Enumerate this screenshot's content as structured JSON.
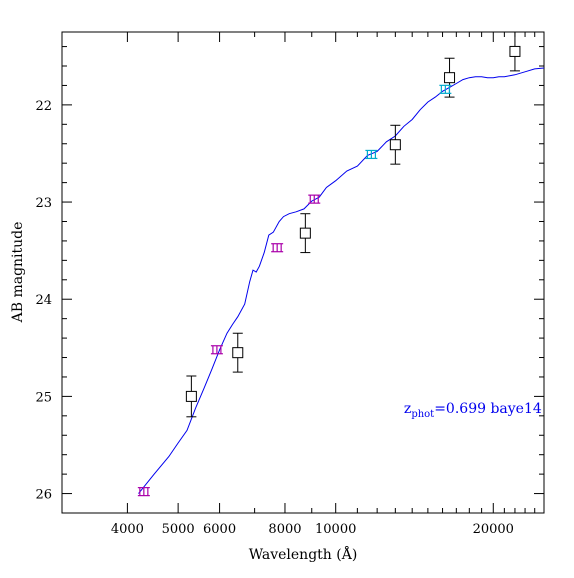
{
  "chart_data": {
    "type": "scatter",
    "title": "",
    "xlabel": "Wavelength (Å)",
    "ylabel": "AB magnitude",
    "x_scale": "log",
    "xlim": [
      3000,
      25000
    ],
    "ylim": [
      26.2,
      21.25
    ],
    "y_inverted": true,
    "x_ticks": [
      4000,
      5000,
      6000,
      8000,
      10000,
      20000
    ],
    "x_tick_labels": [
      "4000",
      "5000",
      "6000",
      "8000",
      "10000",
      "20000"
    ],
    "y_ticks": [
      22,
      23,
      24,
      25,
      26
    ],
    "y_tick_labels": [
      "22",
      "23",
      "24",
      "25",
      "26"
    ],
    "grid": false,
    "annotation": {
      "main": "z",
      "subscript": "phot",
      "rest": "=0.699 baye14",
      "color": "#0000ee",
      "x": 13500,
      "y": 25.12
    },
    "series": [
      {
        "kind": "model",
        "color": "#0000ee",
        "x": [
          4200,
          4500,
          4800,
          5000,
          5200,
          5400,
          5600,
          5800,
          6000,
          6200,
          6350,
          6500,
          6700,
          6850,
          6950,
          7050,
          7150,
          7300,
          7450,
          7600,
          7800,
          7950,
          8150,
          8400,
          8700,
          9000,
          9300,
          9600,
          10000,
          10500,
          11000,
          11500,
          12000,
          12500,
          13000,
          13500,
          14000,
          14500,
          15000,
          15500,
          16000,
          16500,
          17000,
          17500,
          18000,
          18500,
          19000,
          19500,
          20000,
          20500,
          21000,
          21500,
          22000,
          23000,
          24000,
          25000
        ],
        "y": [
          26.0,
          25.8,
          25.62,
          25.48,
          25.35,
          25.12,
          24.92,
          24.72,
          24.52,
          24.35,
          24.26,
          24.18,
          24.05,
          23.82,
          23.7,
          23.72,
          23.66,
          23.52,
          23.34,
          23.31,
          23.2,
          23.15,
          23.12,
          23.1,
          23.07,
          22.99,
          22.95,
          22.85,
          22.78,
          22.68,
          22.63,
          22.52,
          22.48,
          22.38,
          22.32,
          22.22,
          22.15,
          22.05,
          21.97,
          21.92,
          21.86,
          21.82,
          21.78,
          21.74,
          21.72,
          21.71,
          21.71,
          21.72,
          21.72,
          21.71,
          21.71,
          21.7,
          21.69,
          21.66,
          21.63,
          21.62
        ]
      },
      {
        "kind": "observed",
        "marker": "square",
        "color": "#000000",
        "x": [
          5300,
          6500,
          8750,
          13000,
          16500,
          22000
        ],
        "y": [
          25.0,
          24.55,
          23.32,
          22.41,
          21.72,
          21.45
        ],
        "yerr": [
          0.21,
          0.2,
          0.2,
          0.2,
          0.2,
          0.2
        ]
      },
      {
        "kind": "synthetic",
        "marker": "I",
        "color": "#aa00aa",
        "x": [
          4300,
          5930,
          7730,
          9100
        ],
        "y": [
          25.98,
          24.52,
          23.47,
          22.97
        ]
      },
      {
        "kind": "synthetic",
        "marker": "I",
        "color": "#00aacc",
        "x": [
          11700,
          16200
        ],
        "y": [
          22.51,
          21.84
        ]
      }
    ]
  }
}
